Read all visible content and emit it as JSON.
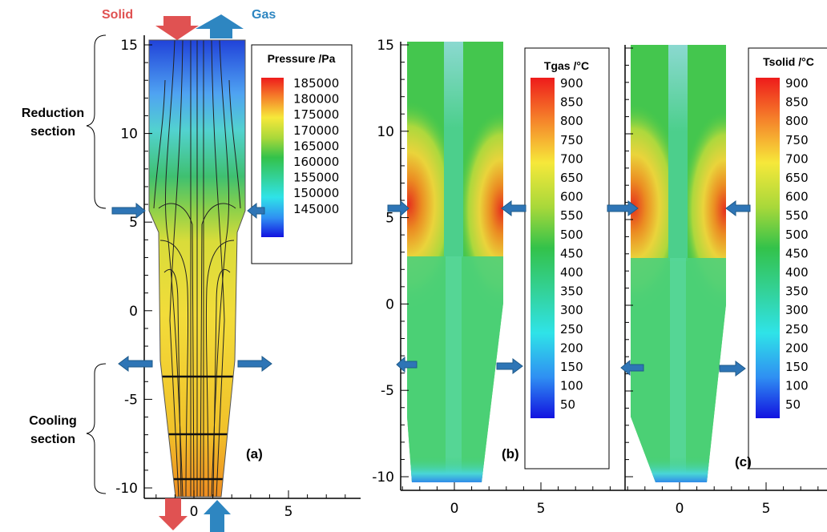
{
  "arrows": {
    "solid_label": "Solid",
    "gas_label": "Gas"
  },
  "sections": {
    "reduction": [
      "Reduction",
      "section"
    ],
    "cooling": [
      "Cooling",
      "section"
    ]
  },
  "panels": {
    "a": {
      "label": "(a)",
      "legend_title": "Pressure /Pa",
      "legend_values": [
        "185000",
        "180000",
        "175000",
        "170000",
        "165000",
        "160000",
        "155000",
        "150000",
        "145000"
      ]
    },
    "b": {
      "label": "(b)",
      "legend_title": "Tgas /°C",
      "legend_values": [
        "900",
        "850",
        "800",
        "750",
        "700",
        "650",
        "600",
        "550",
        "500",
        "450",
        "400",
        "350",
        "300",
        "250",
        "200",
        "150",
        "100",
        "50"
      ]
    },
    "c": {
      "label": "(c)",
      "legend_title": "Tsolid /°C",
      "legend_values": [
        "900",
        "850",
        "800",
        "750",
        "700",
        "650",
        "600",
        "550",
        "500",
        "450",
        "400",
        "350",
        "300",
        "250",
        "200",
        "150",
        "100",
        "50"
      ]
    }
  },
  "axes": {
    "a": {
      "y_ticks": [
        "15",
        "10",
        "5",
        "0",
        "-5",
        "-10"
      ],
      "x_ticks": [
        "0",
        "5"
      ]
    },
    "b": {
      "y_ticks": [
        "15",
        "10",
        "5",
        "0",
        "-5",
        "-10"
      ],
      "x_ticks": [
        "0",
        "5"
      ]
    },
    "c": {
      "x_ticks": [
        "0",
        "5"
      ]
    }
  },
  "colors": {
    "solid_arrow": "#e05252",
    "gas_arrow": "#2e86c1",
    "side_arrow": "#2e75b6"
  }
}
